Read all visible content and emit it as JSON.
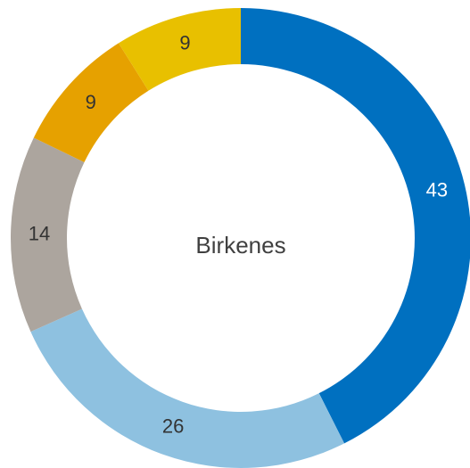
{
  "chart_data": {
    "type": "donut",
    "center_label": "Birkenes",
    "values": [
      43,
      26,
      14,
      9,
      9
    ],
    "colors": [
      "#0070c0",
      "#8ec1e0",
      "#aca59e",
      "#e6a100",
      "#e8c000"
    ],
    "label_colors": [
      "#ffffff",
      "#333333",
      "#333333",
      "#333333",
      "#333333"
    ],
    "start_angle": 0,
    "direction": "clockwise"
  }
}
